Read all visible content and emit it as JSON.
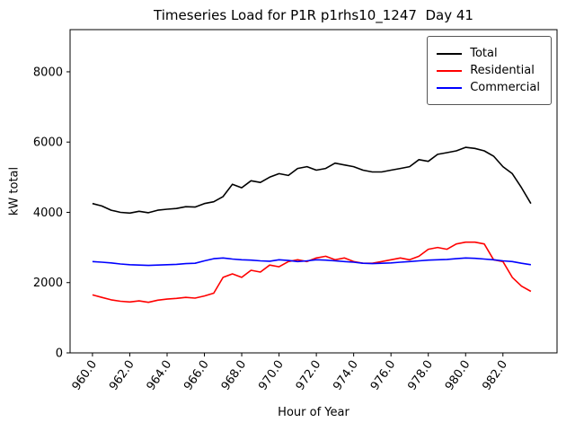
{
  "figure": {
    "title": "Timeseries Load for P1R p1rhs10_1247  Day 41",
    "xlabel": "Hour of Year",
    "ylabel": "kW total"
  },
  "chart_data": {
    "type": "line",
    "title": "Timeseries Load for P1R p1rhs10_1247  Day 41",
    "xlabel": "Hour of Year",
    "ylabel": "kW total",
    "xlim": [
      958.8,
      984.9
    ],
    "ylim": [
      0,
      9200
    ],
    "grid": false,
    "legend_position": "upper right",
    "x_ticks": [
      {
        "value": 960,
        "label": "960.0"
      },
      {
        "value": 962,
        "label": "962.0"
      },
      {
        "value": 964,
        "label": "964.0"
      },
      {
        "value": 966,
        "label": "966.0"
      },
      {
        "value": 968,
        "label": "968.0"
      },
      {
        "value": 970,
        "label": "970.0"
      },
      {
        "value": 972,
        "label": "972.0"
      },
      {
        "value": 974,
        "label": "974.0"
      },
      {
        "value": 976,
        "label": "976.0"
      },
      {
        "value": 978,
        "label": "978.0"
      },
      {
        "value": 980,
        "label": "980.0"
      },
      {
        "value": 982,
        "label": "982.0"
      }
    ],
    "y_ticks": [
      {
        "value": 0,
        "label": "0"
      },
      {
        "value": 2000,
        "label": "2000"
      },
      {
        "value": 4000,
        "label": "4000"
      },
      {
        "value": 6000,
        "label": "6000"
      },
      {
        "value": 8000,
        "label": "8000"
      }
    ],
    "x": [
      960,
      960.5,
      961,
      961.5,
      962,
      962.5,
      963,
      963.5,
      964,
      964.5,
      965,
      965.5,
      966,
      966.5,
      967,
      967.5,
      968,
      968.5,
      969,
      969.5,
      970,
      970.5,
      971,
      971.5,
      972,
      972.5,
      973,
      973.5,
      974,
      974.5,
      975,
      975.5,
      976,
      976.5,
      977,
      977.5,
      978,
      978.5,
      979,
      979.5,
      980,
      980.5,
      981,
      981.5,
      982,
      982.5,
      983,
      983.5
    ],
    "series": [
      {
        "name": "Total",
        "color": "#000000",
        "values": [
          4250,
          4180,
          4060,
          4000,
          3980,
          4030,
          3990,
          4060,
          4090,
          4110,
          4160,
          4150,
          4250,
          4300,
          4450,
          4800,
          4700,
          4900,
          4850,
          5000,
          5100,
          5050,
          5250,
          5300,
          5200,
          5250,
          5400,
          5350,
          5300,
          5200,
          5150,
          5150,
          5200,
          5250,
          5300,
          5500,
          5450,
          5650,
          5700,
          5750,
          5850,
          5820,
          5750,
          5600,
          5300,
          5100,
          4700,
          4250
        ]
      },
      {
        "name": "Residential",
        "color": "#ff0000",
        "values": [
          1650,
          1580,
          1510,
          1470,
          1450,
          1480,
          1440,
          1500,
          1530,
          1550,
          1580,
          1560,
          1620,
          1700,
          2150,
          2250,
          2150,
          2350,
          2300,
          2500,
          2450,
          2600,
          2650,
          2600,
          2700,
          2750,
          2650,
          2700,
          2600,
          2550,
          2550,
          2600,
          2650,
          2700,
          2650,
          2750,
          2950,
          3000,
          2950,
          3100,
          3150,
          3150,
          3100,
          2650,
          2600,
          2150,
          1900,
          1750
        ]
      },
      {
        "name": "Commercial",
        "color": "#0000ff",
        "values": [
          2600,
          2580,
          2560,
          2530,
          2510,
          2500,
          2490,
          2500,
          2510,
          2520,
          2540,
          2550,
          2620,
          2680,
          2700,
          2670,
          2650,
          2640,
          2620,
          2610,
          2650,
          2630,
          2600,
          2620,
          2650,
          2640,
          2620,
          2600,
          2580,
          2550,
          2540,
          2550,
          2560,
          2580,
          2600,
          2620,
          2640,
          2650,
          2660,
          2680,
          2700,
          2690,
          2670,
          2650,
          2620,
          2600,
          2550,
          2510
        ]
      }
    ]
  }
}
